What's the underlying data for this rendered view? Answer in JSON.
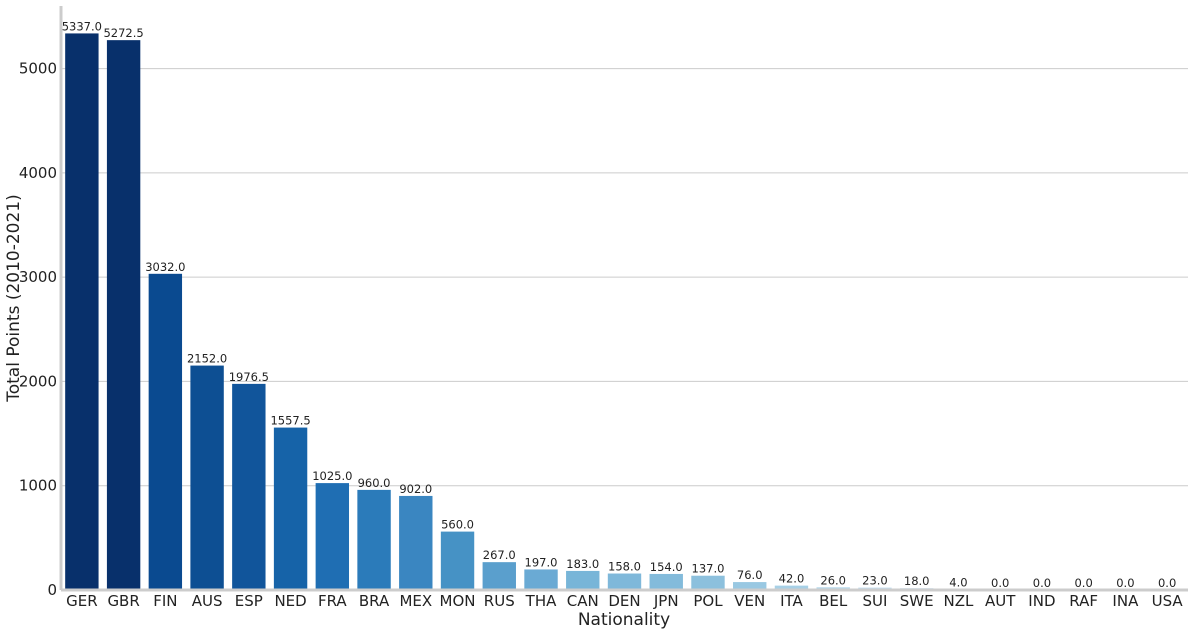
{
  "chart_data": {
    "type": "bar",
    "title": "",
    "xlabel": "Nationality",
    "ylabel": "Total Points (2010-2021)",
    "ylim": [
      0,
      5600
    ],
    "yticks": [
      0,
      1000,
      2000,
      3000,
      4000,
      5000
    ],
    "grid": "y",
    "legend": "none",
    "palette": "Blues_r",
    "categories": [
      "GER",
      "GBR",
      "FIN",
      "AUS",
      "ESP",
      "NED",
      "FRA",
      "BRA",
      "MEX",
      "MON",
      "RUS",
      "THA",
      "CAN",
      "DEN",
      "JPN",
      "POL",
      "VEN",
      "ITA",
      "BEL",
      "SUI",
      "SWE",
      "NZL",
      "AUT",
      "IND",
      "RAF",
      "INA",
      "USA"
    ],
    "values": [
      5337.0,
      5272.5,
      3032.0,
      2152.0,
      1976.5,
      1557.5,
      1025.0,
      960.0,
      902.0,
      560.0,
      267.0,
      197.0,
      183.0,
      158.0,
      154.0,
      137.0,
      76.0,
      42.0,
      26.0,
      23.0,
      18.0,
      4.0,
      0.0,
      0.0,
      0.0,
      0.0,
      0.0
    ],
    "data_labels": [
      "5337.0",
      "5272.5",
      "3032.0",
      "2152.0",
      "1976.5",
      "1557.5",
      "1025.0",
      "960.0",
      "902.0",
      "560.0",
      "267.0",
      "197.0",
      "183.0",
      "158.0",
      "154.0",
      "137.0",
      "76.0",
      "42.0",
      "26.0",
      "23.0",
      "18.0",
      "4.0",
      "0.0",
      "0.0",
      "0.0",
      "0.0",
      "0.0"
    ],
    "colors": [
      "#08306b",
      "#08306b",
      "#0a4a90",
      "#0d4f93",
      "#11559b",
      "#1663a8",
      "#1f6eb3",
      "#2b7bba",
      "#3a86c1",
      "#4692c5",
      "#5a9fcd",
      "#6aaad4",
      "#78b5d8",
      "#7fb8da",
      "#83bbdb",
      "#8cc0dd",
      "#99c8e2",
      "#a7d0e6",
      "#b4d7ea",
      "#c2ddef",
      "#cee4f3",
      "#d8e9f6",
      "#e1eef8",
      "#e8f2fa",
      "#eef5fb",
      "#f3f8fd",
      "#f7fbff"
    ]
  }
}
